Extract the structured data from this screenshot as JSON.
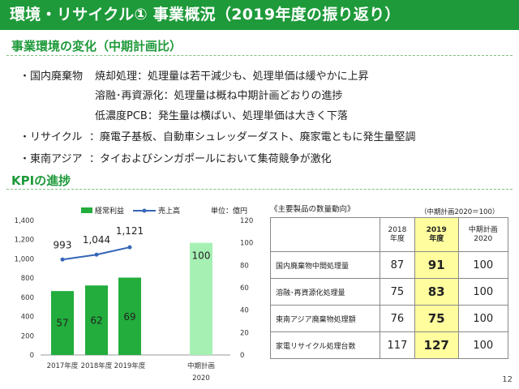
{
  "header": {
    "title": "環境・リサイクル① 事業概況（2019年度の振り返り）"
  },
  "env_section": {
    "heading": "事業環境の変化（中期計画比）",
    "rows": [
      {
        "category": "・国内廃棄物",
        "text": "焼却処理：処理量は若干減少も、処理単価は緩やかに上昇"
      },
      {
        "category": "",
        "text": "溶融･再資源化：処理量は概ね中期計画どおりの進捗"
      },
      {
        "category": "",
        "text": "低濃度PCB：発生量は横ばい、処理単価は大きく下落"
      },
      {
        "category": "・リサイクル",
        "text": "：廃電子基板、自動車シュレッダーダスト、廃家電ともに発生量堅調"
      },
      {
        "category": "・東南アジア",
        "text": "：タイおよびシンガポールにおいて集荷競争が激化"
      }
    ]
  },
  "kpi_section": {
    "heading": "KPIの進捗"
  },
  "chart_data": {
    "type": "bar",
    "legend": [
      "経常利益",
      "売上高"
    ],
    "unit_label": "単位：億円",
    "categories": [
      "2017年度",
      "2018年度",
      "2019年度",
      "中期計画"
    ],
    "category_sub": [
      "",
      "",
      "",
      "2020"
    ],
    "series": [
      {
        "name": "経常利益",
        "type": "bar",
        "axis": "right",
        "values": [
          57,
          62,
          69,
          100
        ]
      },
      {
        "name": "売上高",
        "type": "line",
        "axis": "left",
        "values": [
          993,
          1044,
          1121,
          null
        ]
      }
    ],
    "value_labels": {
      "bars": [
        "57",
        "62",
        "69",
        "100"
      ],
      "line": [
        "993",
        "1,044",
        "1,121"
      ]
    },
    "left_axis": {
      "ylim": [
        0,
        1400
      ],
      "ticks": [
        "0",
        "200",
        "400",
        "600",
        "800",
        "1,000",
        "1,200",
        "1,400"
      ]
    },
    "right_axis": {
      "ylim": [
        0,
        120
      ],
      "ticks": [
        "0",
        "20",
        "40",
        "60",
        "80",
        "100",
        "120"
      ]
    },
    "colors": {
      "bar": "#22ad3c",
      "bar_plan": "#a6f0b4",
      "line": "#3565b8"
    }
  },
  "kpi_table": {
    "caption": "《主要製品の数量動向》",
    "note": "（中期計画2020＝100）",
    "headers": [
      "",
      "2018\n年度",
      "2019\n年度",
      "中期計画\n2020"
    ],
    "rows": [
      {
        "name": "国内廃棄物中間処理量",
        "y2018": "87",
        "y2019": "91",
        "plan": "100"
      },
      {
        "name": "溶融･再資源化処理量",
        "y2018": "75",
        "y2019": "83",
        "plan": "100"
      },
      {
        "name": "東南アジア廃棄物処理額",
        "y2018": "76",
        "y2019": "75",
        "plan": "100"
      },
      {
        "name": "家電リサイクル処理台数",
        "y2018": "117",
        "y2019": "127",
        "plan": "100"
      }
    ]
  },
  "footer": {
    "page_number": "12"
  }
}
